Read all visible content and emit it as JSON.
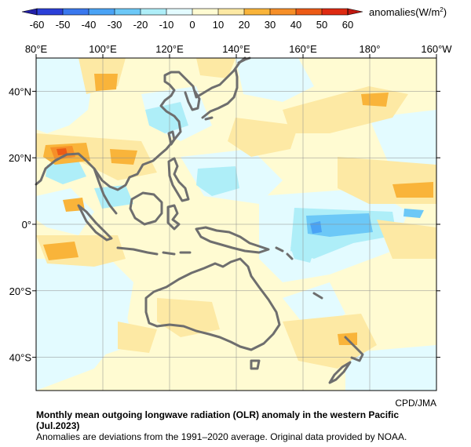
{
  "colorbar": {
    "label": "anomalies(W/m",
    "label_sup": "2",
    "label_close": ")",
    "ticks": [
      "-60",
      "-50",
      "-40",
      "-30",
      "-20",
      "-10",
      "0",
      "10",
      "20",
      "30",
      "40",
      "50",
      "60"
    ],
    "colors": [
      "#2b3fd8",
      "#3a78ee",
      "#4aa3f5",
      "#6cc8f7",
      "#aeeef8",
      "#e3fbff",
      "#fffbd2",
      "#fde9a4",
      "#f9b43a",
      "#f68f28",
      "#ec5a16",
      "#de2a11"
    ]
  },
  "map": {
    "lon_labels": [
      "80°E",
      "100°E",
      "120°E",
      "140°E",
      "160°E",
      "180°",
      "160°W"
    ],
    "lat_labels": [
      "40°N",
      "20°N",
      "0°",
      "20°S",
      "40°S"
    ],
    "coast_color": "#6e6e6e",
    "credit": "CPD/JMA"
  },
  "caption": {
    "title_line1": "Monthly mean outgoing longwave radiation (OLR) anomaly in the western Pacific",
    "title_line2": "(Jul.2023)",
    "note": "Anomalies are deviations from the 1991–2020 average. Original data provided by NOAA."
  }
}
